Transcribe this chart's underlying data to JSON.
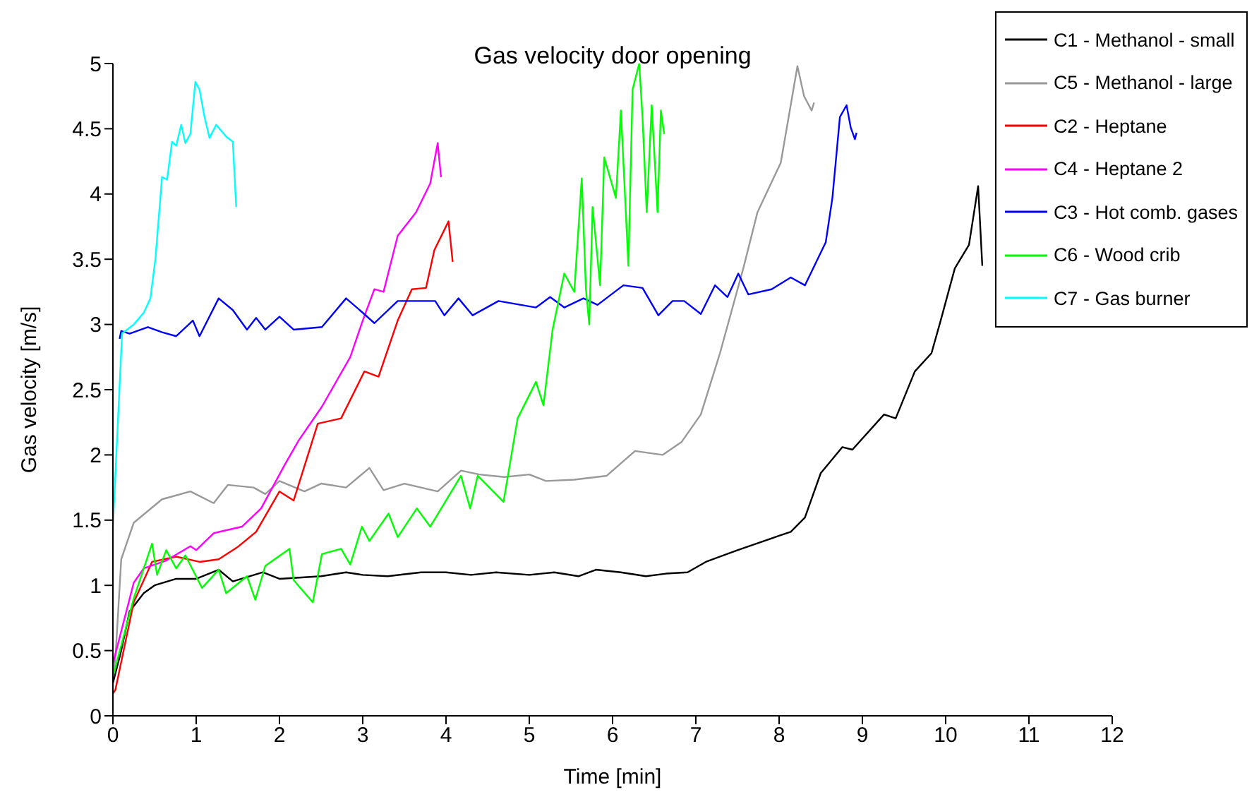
{
  "chart_data": {
    "type": "line",
    "title": "Gas velocity door opening",
    "xlabel": "Time [min]",
    "ylabel": "Gas velocity [m/s]",
    "xlim": [
      0,
      12
    ],
    "xticks": [
      0,
      1,
      2,
      3,
      4,
      5,
      6,
      7,
      8,
      9,
      10,
      11,
      12
    ],
    "ylim": [
      0,
      5
    ],
    "yticks": [
      0,
      0.5,
      1,
      1.5,
      2,
      2.5,
      3,
      3.5,
      4,
      4.5,
      5
    ],
    "grid": false,
    "legend": "top right",
    "series": [
      {
        "name": "C1 - Methanol - small",
        "color": "#000000",
        "x": [
          0,
          0.1,
          0.2,
          0.37,
          0.5,
          0.76,
          1.0,
          1.27,
          1.44,
          1.8,
          2.0,
          2.5,
          2.8,
          3.0,
          3.3,
          3.7,
          4.0,
          4.3,
          4.6,
          5.0,
          5.3,
          5.59,
          5.8,
          6.1,
          6.4,
          6.64,
          6.9,
          7.12,
          7.5,
          8.0,
          8.14,
          8.31,
          8.5,
          8.76,
          8.88,
          9.26,
          9.4,
          9.63,
          9.83,
          9.94,
          10.11,
          10.28,
          10.39,
          10.44
        ],
        "values": [
          0.25,
          0.5,
          0.8,
          0.94,
          1.0,
          1.05,
          1.05,
          1.12,
          1.03,
          1.1,
          1.05,
          1.07,
          1.1,
          1.08,
          1.07,
          1.1,
          1.1,
          1.08,
          1.1,
          1.08,
          1.1,
          1.07,
          1.12,
          1.1,
          1.07,
          1.09,
          1.1,
          1.18,
          1.27,
          1.38,
          1.41,
          1.52,
          1.86,
          2.06,
          2.04,
          2.31,
          2.28,
          2.64,
          2.78,
          3.03,
          3.43,
          3.61,
          4.06,
          3.45
        ]
      },
      {
        "name": "C5 - Methanol - large",
        "color": "#999999",
        "x": [
          0,
          0.03,
          0.1,
          0.25,
          0.59,
          0.93,
          1.21,
          1.38,
          1.69,
          1.83,
          2.0,
          2.3,
          2.5,
          2.8,
          3.08,
          3.25,
          3.5,
          3.9,
          4.18,
          4.4,
          4.7,
          5.0,
          5.2,
          5.54,
          5.93,
          6.27,
          6.6,
          6.83,
          7.06,
          7.29,
          7.57,
          7.74,
          8.02,
          8.22,
          8.3,
          8.39,
          8.42
        ],
        "values": [
          0.3,
          0.44,
          1.2,
          1.48,
          1.66,
          1.72,
          1.63,
          1.77,
          1.75,
          1.7,
          1.8,
          1.72,
          1.78,
          1.75,
          1.9,
          1.73,
          1.78,
          1.72,
          1.88,
          1.85,
          1.83,
          1.85,
          1.8,
          1.81,
          1.84,
          2.03,
          2.0,
          2.1,
          2.31,
          2.78,
          3.43,
          3.86,
          4.24,
          4.98,
          4.75,
          4.64,
          4.7
        ]
      },
      {
        "name": "C2 - Heptane",
        "color": "#ff0000",
        "x": [
          0,
          0.03,
          0.25,
          0.47,
          0.76,
          1.04,
          1.27,
          1.49,
          1.72,
          2.0,
          2.17,
          2.46,
          2.74,
          3.02,
          3.19,
          3.42,
          3.59,
          3.76,
          3.86,
          4.03,
          4.08
        ],
        "values": [
          0.17,
          0.2,
          0.87,
          1.18,
          1.22,
          1.18,
          1.2,
          1.29,
          1.41,
          1.72,
          1.65,
          2.24,
          2.28,
          2.64,
          2.6,
          3.03,
          3.27,
          3.28,
          3.57,
          3.79,
          3.48
        ]
      },
      {
        "name": "C4 - Heptane 2",
        "color": "#ff00ff",
        "x": [
          0,
          0.25,
          0.37,
          0.64,
          0.93,
          1.0,
          1.21,
          1.55,
          1.78,
          2.06,
          2.23,
          2.51,
          2.85,
          3.0,
          3.14,
          3.25,
          3.42,
          3.64,
          3.81,
          3.9,
          3.94
        ],
        "values": [
          0.4,
          1.02,
          1.13,
          1.19,
          1.3,
          1.27,
          1.4,
          1.45,
          1.59,
          1.92,
          2.11,
          2.37,
          2.75,
          3.03,
          3.27,
          3.25,
          3.68,
          3.86,
          4.08,
          4.39,
          4.13
        ]
      },
      {
        "name": "C3 - Hot comb. gases",
        "color": "#0000ff",
        "x": [
          0.08,
          0.1,
          0.2,
          0.42,
          0.59,
          0.76,
          0.96,
          1.04,
          1.27,
          1.44,
          1.61,
          1.72,
          1.83,
          2.0,
          2.17,
          2.51,
          2.8,
          3.0,
          3.14,
          3.42,
          3.59,
          3.87,
          3.98,
          4.15,
          4.32,
          4.63,
          5.08,
          5.25,
          5.42,
          5.65,
          5.82,
          6.13,
          6.36,
          6.55,
          6.72,
          6.86,
          7.06,
          7.23,
          7.38,
          7.51,
          7.63,
          7.91,
          8.14,
          8.31,
          8.56,
          8.64,
          8.73,
          8.81,
          8.86,
          8.91,
          8.93
        ],
        "values": [
          2.89,
          2.95,
          2.93,
          2.98,
          2.94,
          2.91,
          3.03,
          2.91,
          3.2,
          3.11,
          2.96,
          3.05,
          2.96,
          3.06,
          2.96,
          2.98,
          3.2,
          3.09,
          3.01,
          3.18,
          3.18,
          3.18,
          3.07,
          3.2,
          3.07,
          3.18,
          3.13,
          3.21,
          3.13,
          3.2,
          3.15,
          3.3,
          3.28,
          3.07,
          3.18,
          3.18,
          3.08,
          3.3,
          3.21,
          3.39,
          3.23,
          3.27,
          3.36,
          3.3,
          3.63,
          3.97,
          4.59,
          4.68,
          4.51,
          4.42,
          4.47
        ]
      },
      {
        "name": "C6 - Wood crib",
        "color": "#00ff00",
        "x": [
          0,
          0.25,
          0.47,
          0.53,
          0.64,
          0.76,
          0.87,
          1.07,
          1.27,
          1.36,
          1.61,
          1.71,
          1.83,
          2.12,
          2.17,
          2.4,
          2.51,
          2.74,
          2.85,
          2.99,
          3.08,
          3.31,
          3.42,
          3.65,
          3.81,
          4.18,
          4.29,
          4.38,
          4.69,
          4.86,
          5.08,
          5.17,
          5.28,
          5.42,
          5.54,
          5.63,
          5.68,
          5.72,
          5.76,
          5.85,
          5.9,
          6.04,
          6.1,
          6.19,
          6.24,
          6.32,
          6.36,
          6.41,
          6.47,
          6.54,
          6.58,
          6.62
        ],
        "values": [
          0.3,
          0.9,
          1.32,
          1.08,
          1.27,
          1.13,
          1.23,
          0.98,
          1.12,
          0.94,
          1.07,
          0.89,
          1.15,
          1.28,
          1.04,
          0.87,
          1.24,
          1.28,
          1.16,
          1.45,
          1.34,
          1.55,
          1.37,
          1.59,
          1.45,
          1.84,
          1.59,
          1.84,
          1.64,
          2.28,
          2.56,
          2.38,
          2.96,
          3.39,
          3.25,
          4.12,
          3.27,
          3.0,
          3.9,
          3.3,
          4.28,
          3.97,
          4.64,
          3.45,
          4.8,
          5.0,
          4.58,
          3.86,
          4.68,
          3.86,
          4.64,
          4.46
        ]
      },
      {
        "name": "C7 - Gas burner",
        "color": "#00ffff",
        "x": [
          0,
          0.11,
          0.25,
          0.37,
          0.45,
          0.51,
          0.59,
          0.65,
          0.71,
          0.76,
          0.82,
          0.87,
          0.93,
          0.99,
          1.04,
          1.1,
          1.16,
          1.24,
          1.36,
          1.44,
          1.48
        ],
        "values": [
          1.45,
          2.93,
          3.0,
          3.09,
          3.2,
          3.5,
          4.13,
          4.11,
          4.4,
          4.37,
          4.53,
          4.39,
          4.46,
          4.86,
          4.8,
          4.59,
          4.43,
          4.53,
          4.44,
          4.4,
          3.9
        ]
      }
    ]
  }
}
